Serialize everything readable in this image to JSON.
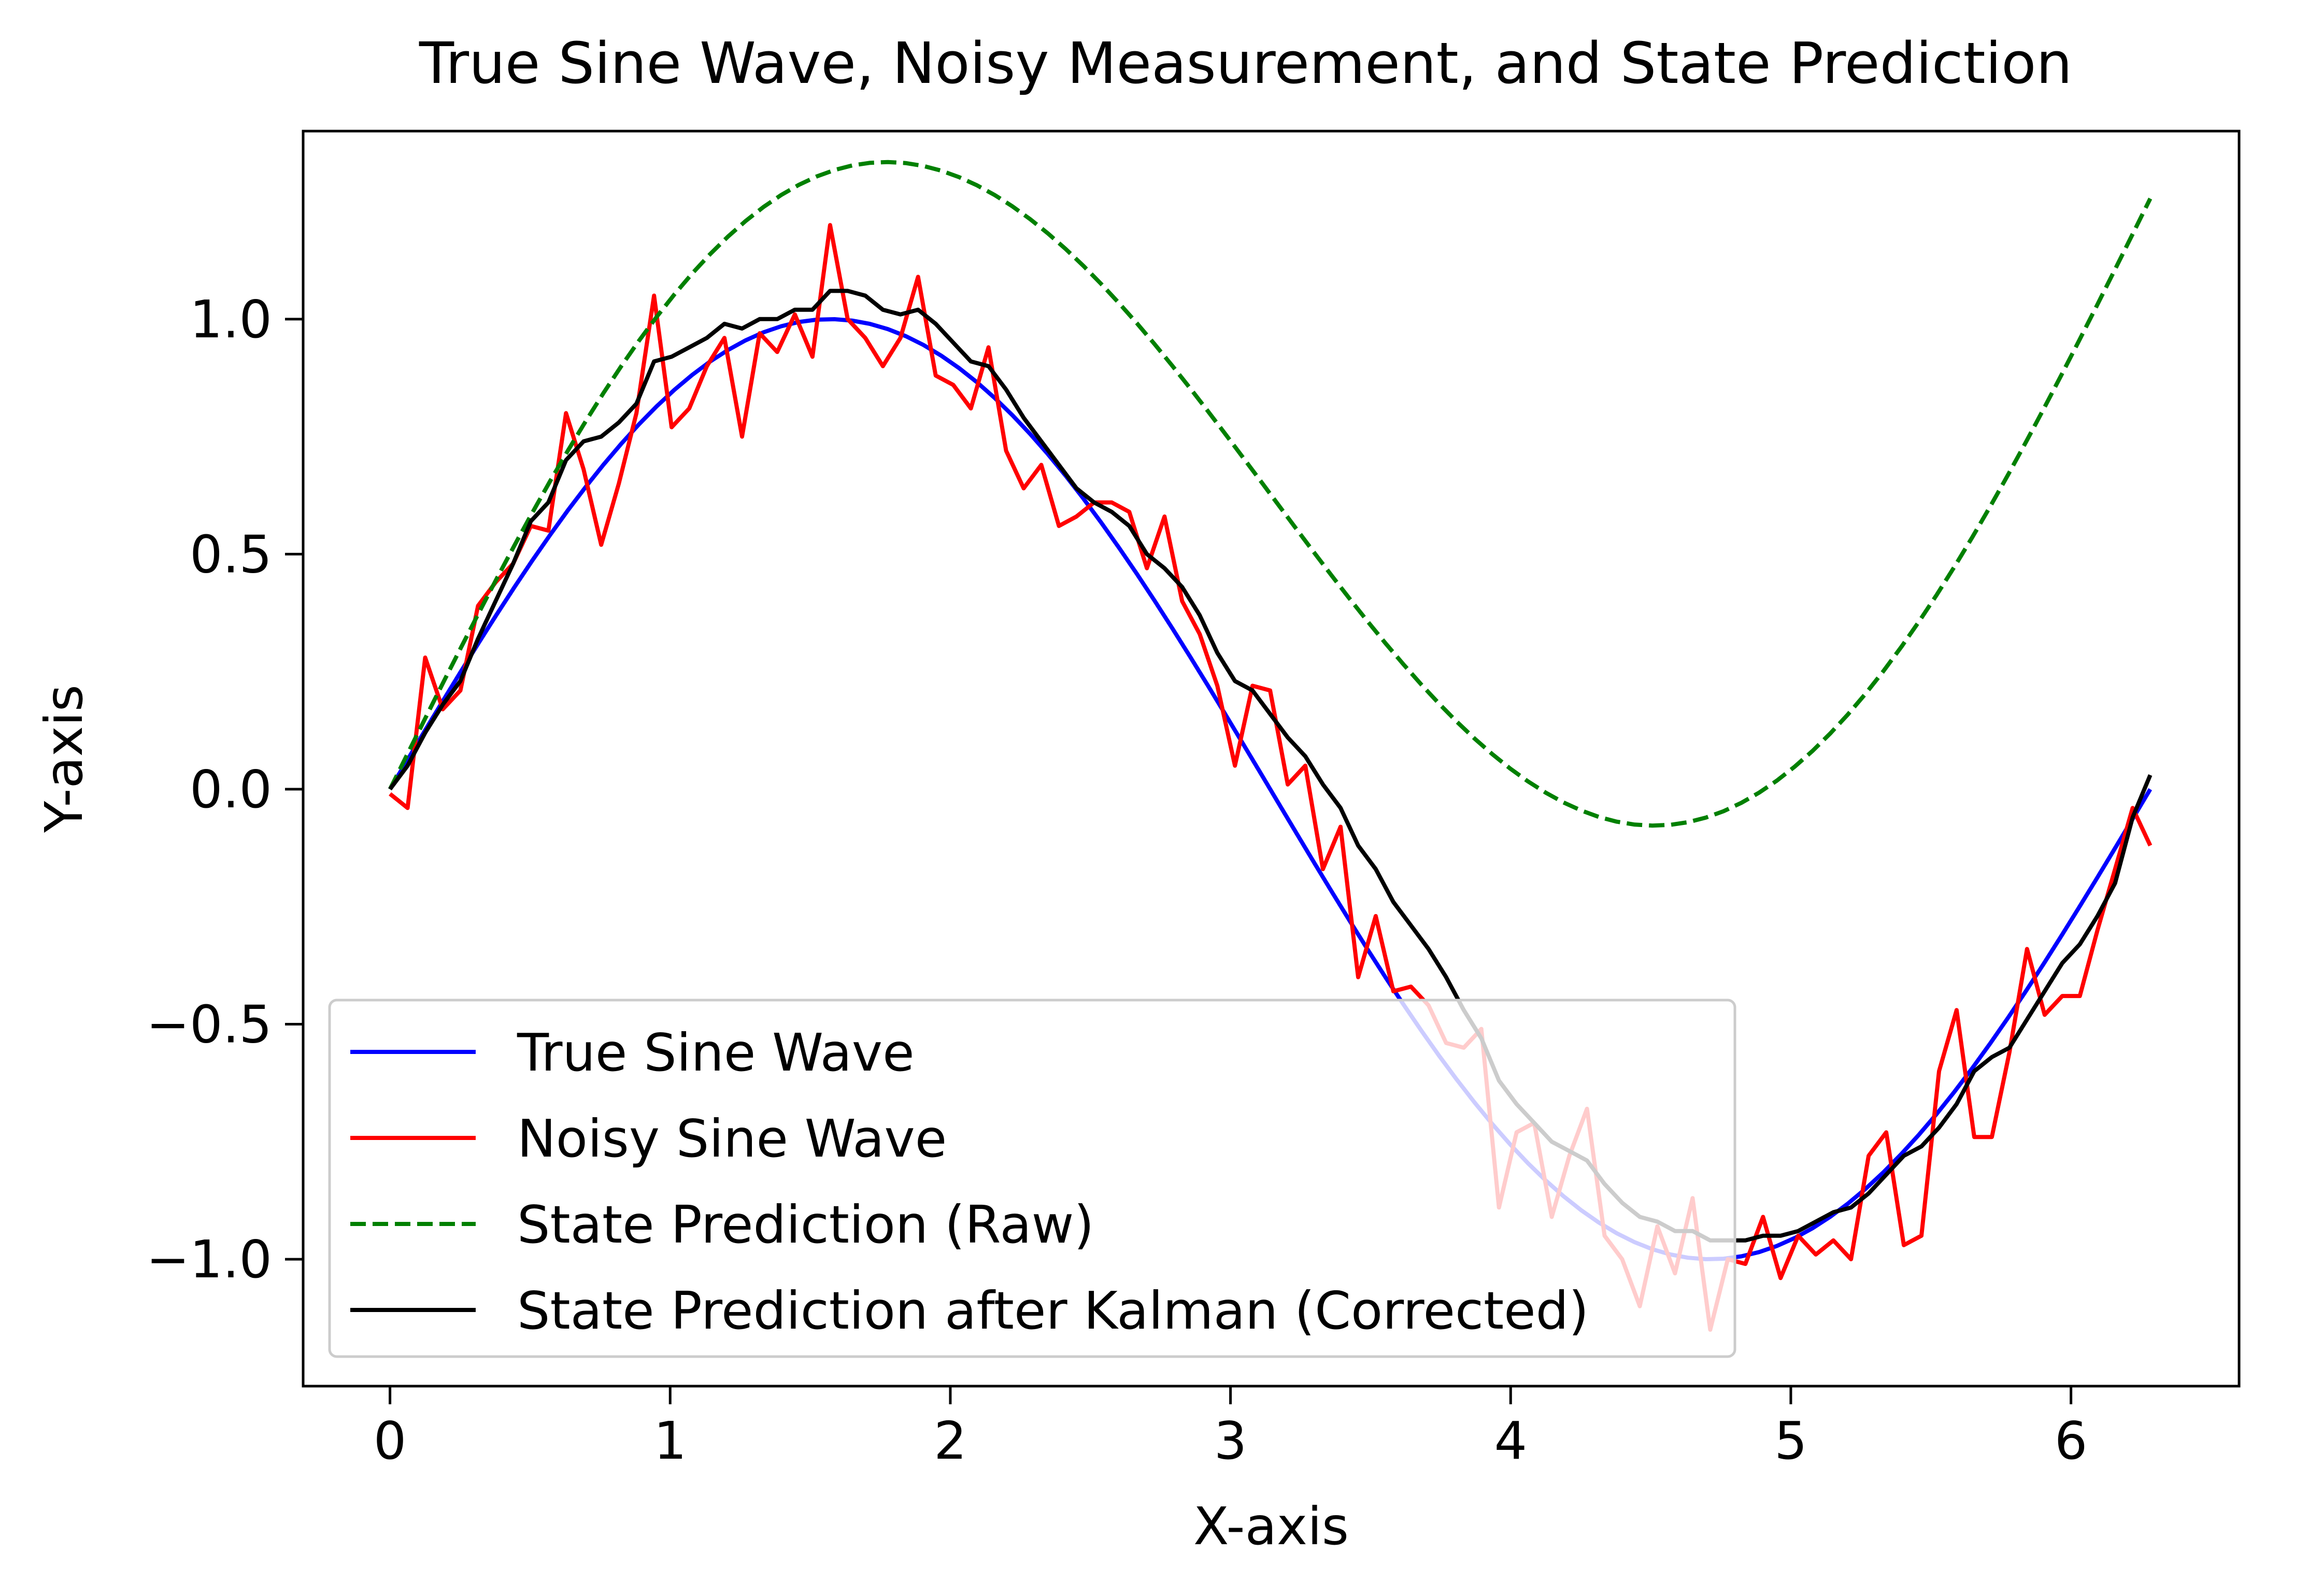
{
  "chart_data": {
    "type": "line",
    "title": "True Sine Wave, Noisy Measurement, and State Prediction",
    "xlabel": "X-axis",
    "ylabel": "Y-axis",
    "xlim": [
      -0.31,
      6.6
    ],
    "ylim": [
      -1.27,
      1.4
    ],
    "xticks": [
      0,
      1,
      2,
      3,
      4,
      5,
      6
    ],
    "xtick_labels": [
      "0",
      "1",
      "2",
      "3",
      "4",
      "5",
      "6"
    ],
    "yticks": [
      -1.0,
      -0.5,
      0.0,
      0.5,
      1.0
    ],
    "ytick_labels": [
      "−1.0",
      "−0.5",
      "0.0",
      "0.5",
      "1.0"
    ],
    "grid": false,
    "legend_position": "lower-left",
    "series": [
      {
        "name": "True Sine Wave",
        "color": "#0000ff",
        "style": "solid",
        "function": "sin(x)",
        "x_range": [
          0,
          6.283
        ],
        "points": 100
      },
      {
        "name": "Noisy Sine Wave",
        "color": "#ff0000",
        "style": "solid",
        "x_range": [
          0,
          6.283
        ],
        "values": [
          -0.01,
          -0.04,
          0.28,
          0.17,
          0.21,
          0.39,
          0.44,
          0.48,
          0.56,
          0.55,
          0.8,
          0.68,
          0.52,
          0.65,
          0.8,
          1.05,
          0.77,
          0.81,
          0.9,
          0.96,
          0.75,
          0.97,
          0.93,
          1.01,
          0.92,
          1.2,
          1.0,
          0.96,
          0.9,
          0.96,
          1.09,
          0.88,
          0.86,
          0.81,
          0.94,
          0.72,
          0.64,
          0.69,
          0.56,
          0.58,
          0.61,
          0.61,
          0.59,
          0.47,
          0.58,
          0.4,
          0.33,
          0.22,
          0.05,
          0.22,
          0.21,
          0.01,
          0.05,
          -0.17,
          -0.08,
          -0.4,
          -0.27,
          -0.43,
          -0.42,
          -0.46,
          -0.54,
          -0.55,
          -0.51,
          -0.89,
          -0.73,
          -0.71,
          -0.91,
          -0.78,
          -0.68,
          -0.95,
          -1.0,
          -1.1,
          -0.93,
          -1.03,
          -0.87,
          -1.15,
          -1.0,
          -1.01,
          -0.91,
          -1.04,
          -0.95,
          -0.99,
          -0.96,
          -1.0,
          -0.78,
          -0.73,
          -0.97,
          -0.95,
          -0.6,
          -0.47,
          -0.74,
          -0.74,
          -0.56,
          -0.34,
          -0.48,
          -0.44,
          -0.44,
          -0.3,
          -0.17,
          -0.04,
          -0.12
        ]
      },
      {
        "name": "State Prediction (Raw)",
        "color": "#008000",
        "style": "dashed",
        "function": "sin(x) + 0.2*x",
        "x_range": [
          0,
          6.283
        ],
        "points": 100
      },
      {
        "name": "State Prediction after Kalman (Corrected)",
        "color": "#000000",
        "style": "solid",
        "x_range": [
          0,
          6.283
        ],
        "values": [
          0.0,
          0.05,
          0.12,
          0.18,
          0.23,
          0.32,
          0.4,
          0.48,
          0.57,
          0.61,
          0.7,
          0.74,
          0.75,
          0.78,
          0.82,
          0.91,
          0.92,
          0.94,
          0.96,
          0.99,
          0.98,
          1.0,
          1.0,
          1.02,
          1.02,
          1.06,
          1.06,
          1.05,
          1.02,
          1.01,
          1.02,
          0.99,
          0.95,
          0.91,
          0.9,
          0.85,
          0.79,
          0.74,
          0.69,
          0.64,
          0.61,
          0.59,
          0.56,
          0.5,
          0.47,
          0.43,
          0.37,
          0.29,
          0.23,
          0.21,
          0.16,
          0.11,
          0.07,
          0.01,
          -0.04,
          -0.12,
          -0.17,
          -0.24,
          -0.29,
          -0.34,
          -0.4,
          -0.47,
          -0.53,
          -0.62,
          -0.67,
          -0.71,
          -0.75,
          -0.77,
          -0.79,
          -0.84,
          -0.88,
          -0.91,
          -0.92,
          -0.94,
          -0.94,
          -0.96,
          -0.96,
          -0.96,
          -0.95,
          -0.95,
          -0.94,
          -0.92,
          -0.9,
          -0.89,
          -0.86,
          -0.82,
          -0.78,
          -0.76,
          -0.72,
          -0.67,
          -0.6,
          -0.57,
          -0.55,
          -0.49,
          -0.43,
          -0.37,
          -0.33,
          -0.27,
          -0.2,
          -0.06,
          0.03
        ]
      }
    ]
  }
}
